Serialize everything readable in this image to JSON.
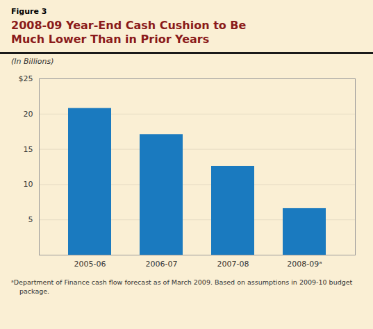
{
  "chart_data": {
    "type": "bar",
    "title": "2008-09 Year-End Cash Cushion to Be\nMuch Lower Than in Prior Years",
    "subtitle": "(In Billions)",
    "annotations": [
      "Figure 3",
      "ᵃDepartment of Finance cash flow forecast as of March 2009. Based on assumptions in 2009-10 budget",
      "package."
    ],
    "categories": [
      "2005-06",
      "2006-07",
      "2007-08",
      "2008-09ᵃ"
    ],
    "values": [
      20.8,
      17.1,
      12.6,
      6.6
    ],
    "color": "#1a7abf",
    "ylim": [
      0,
      25
    ],
    "yticks": [
      5,
      10,
      15,
      20,
      {
        "value": 25,
        "label": "$25"
      }
    ],
    "grid": true
  }
}
